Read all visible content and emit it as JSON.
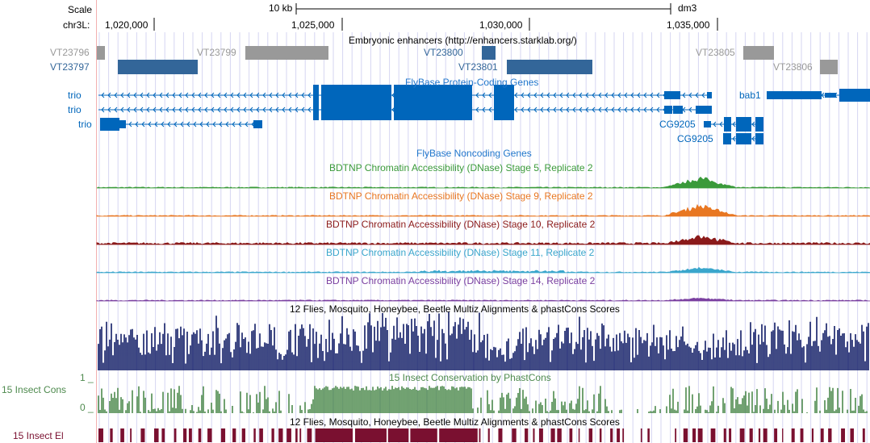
{
  "scale": {
    "label": "Scale",
    "span_label": "10 kb",
    "assembly": "dm3"
  },
  "ruler": {
    "chrom_label": "chr3L:",
    "ticks": [
      "1,020,000",
      "1,025,000",
      "1,030,000",
      "1,035,000"
    ]
  },
  "tracks": {
    "enhancers": {
      "title": "Embryonic enhancers (http://enhancers.starklab.org/)",
      "items": [
        {
          "name": "VT23796",
          "color": "#999999"
        },
        {
          "name": "VT23797",
          "color": "#336699"
        },
        {
          "name": "VT23799",
          "color": "#999999"
        },
        {
          "name": "VT23800",
          "color": "#336699"
        },
        {
          "name": "VT23801",
          "color": "#336699"
        },
        {
          "name": "VT23805",
          "color": "#999999"
        },
        {
          "name": "VT23806",
          "color": "#999999"
        }
      ]
    },
    "flybase_coding": {
      "title": "FlyBase Protein-Coding Genes",
      "color": "#0066bb",
      "genes": [
        "trio",
        "trio",
        "trio",
        "bab1",
        "CG9205",
        "CG9205"
      ]
    },
    "flybase_noncoding": {
      "title": "FlyBase Noncoding Genes",
      "color": "#2277cc"
    },
    "dnase": [
      {
        "title": "BDTNP Chromatin Accessibility (DNase) Stage 5, Replicate 2",
        "color": "#3a9a3a"
      },
      {
        "title": "BDTNP Chromatin Accessibility (DNase) Stage 9, Replicate 2",
        "color": "#e87722"
      },
      {
        "title": "BDTNP Chromatin Accessibility (DNase) Stage 10, Replicate 2",
        "color": "#8b1a1a"
      },
      {
        "title": "BDTNP Chromatin Accessibility (DNase) Stage 11, Replicate 2",
        "color": "#3aa6cc"
      },
      {
        "title": "BDTNP Chromatin Accessibility (DNase) Stage 14, Replicate 2",
        "color": "#7a3fa0"
      }
    ],
    "multiz": {
      "title": "12 Flies, Mosquito, Honeybee, Beetle Multiz Alignments & phastCons Scores",
      "color": "#101c66"
    },
    "phastcons": {
      "title": "15 Insect Conservation by PhastCons",
      "side_label": "15 Insect Cons",
      "ymax": "1 _",
      "ymin": "0 _",
      "color": "#4e8a4e"
    },
    "elements": {
      "title": "12 Flies, Mosquito, Honeybee, Beetle Multiz Alignments & phastCons Scores",
      "side_label": "15 Insect El",
      "color": "#7a1030"
    }
  }
}
